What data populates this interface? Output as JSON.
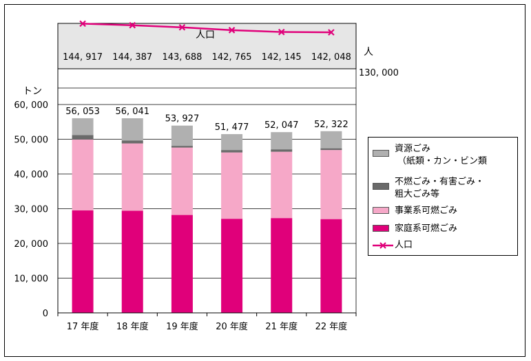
{
  "chart_data": {
    "type": "bar",
    "stacked": true,
    "categories": [
      "17 年度",
      "18 年度",
      "19 年度",
      "20 年度",
      "21 年度",
      "22 年度"
    ],
    "ylabel": "トン",
    "ylim": [
      0,
      60000
    ],
    "yticks": [
      "0",
      "10, 000",
      "20, 000",
      "30, 000",
      "40, 000",
      "50, 000",
      "60, 000"
    ],
    "grid": true,
    "legend_placement": "right",
    "series": [
      {
        "name": "家庭系可燃ごみ",
        "color": "#e0007a",
        "values": [
          29500,
          29400,
          28200,
          27100,
          27300,
          27000
        ]
      },
      {
        "name": "事業系可燃ごみ",
        "color": "#f6a8c8",
        "values": [
          20400,
          19400,
          19400,
          19100,
          19100,
          19900
        ]
      },
      {
        "name": "不燃ごみ・有害ごみ・粗大ごみ等",
        "color": "#6a6a6a",
        "values": [
          1300,
          800,
          500,
          700,
          700,
          500
        ]
      },
      {
        "name": "資源ごみ（紙類・カン・ビン類",
        "color": "#b0b0b0",
        "values": [
          4853,
          6441,
          5827,
          4577,
          4947,
          4922
        ]
      }
    ],
    "totals": [
      56053,
      56041,
      53927,
      51477,
      52047,
      52322
    ],
    "total_labels": [
      "56, 053",
      "56, 041",
      "53, 927",
      "51, 477",
      "52, 047",
      "52, 322"
    ],
    "population": {
      "name": "人口",
      "color": "#e0007a",
      "title": "人口",
      "unit_label": "人",
      "axis_tick": "130, 000",
      "values": [
        144917,
        144387,
        143688,
        142765,
        142145,
        142048
      ],
      "labels": [
        "144, 917",
        "144, 387",
        "143, 688",
        "142, 765",
        "142, 145",
        "142, 048"
      ]
    }
  },
  "legend": {
    "items": [
      {
        "line1": "資源ごみ",
        "line2": "（紙類・カン・ビン類",
        "color": "#b0b0b0"
      },
      {
        "line1": "不燃ごみ・有害ごみ・",
        "line2": "粗大ごみ等",
        "color": "#6a6a6a"
      },
      {
        "line1": "事業系可燃ごみ",
        "line2": "",
        "color": "#f6a8c8"
      },
      {
        "line1": "家庭系可燃ごみ",
        "line2": "",
        "color": "#e0007a"
      },
      {
        "line1": "人口",
        "line2": "",
        "color": "#e0007a"
      }
    ]
  }
}
